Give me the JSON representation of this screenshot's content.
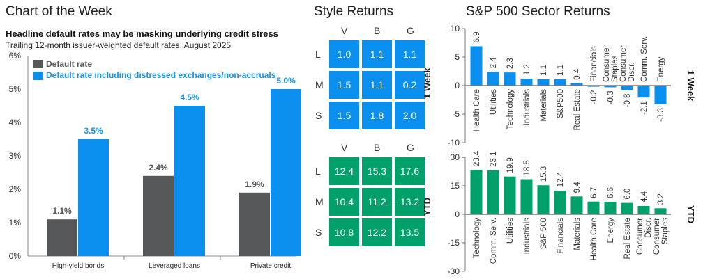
{
  "titles": {
    "chart_of_week": "Chart of the Week",
    "style": "Style Returns",
    "sector": "S&P 500 Sector Returns"
  },
  "colors": {
    "grey": "#555759",
    "blue": "#0A8FEF",
    "green": "#00A06A",
    "labelBlue": "#1A8FEA"
  },
  "style_returns": {
    "columns": [
      "V",
      "B",
      "G"
    ],
    "rows": [
      "L",
      "M",
      "S"
    ],
    "week_label": "1 Week",
    "ytd_label": "YTD",
    "week": [
      [
        "1.0",
        "1.1",
        "1.1"
      ],
      [
        "1.5",
        "1.1",
        "0.2"
      ],
      [
        "1.5",
        "1.8",
        "2.0"
      ]
    ],
    "ytd": [
      [
        "12.4",
        "15.3",
        "17.6"
      ],
      [
        "10.4",
        "11.2",
        "13.2"
      ],
      [
        "10.8",
        "12.2",
        "13.5"
      ]
    ]
  },
  "chart_data": [
    {
      "type": "bar",
      "title": "Headline default rates may be masking underlying credit stress",
      "subtitle": "Trailing 12-month issuer-weighted default rates, August 2025",
      "categories": [
        "High-yield bonds",
        "Leveraged loans",
        "Private credit"
      ],
      "series": [
        {
          "name": "Default rate",
          "values": [
            1.1,
            2.4,
            1.9
          ],
          "labels": [
            "1.1%",
            "2.4%",
            "1.9%"
          ]
        },
        {
          "name": "Default rate including distressed exchanges/non-accruals",
          "values": [
            3.5,
            4.5,
            5.0
          ],
          "labels": [
            "3.5%",
            "4.5%",
            "5.0%"
          ]
        }
      ],
      "yticks": [
        "0%",
        "1%",
        "2%",
        "3%",
        "4%",
        "5%",
        "6%"
      ],
      "ylim": [
        0,
        6
      ],
      "legend": "top-left"
    },
    {
      "type": "bar",
      "title": "1 Week",
      "categories": [
        "Health Care",
        "Utilities",
        "Technology",
        "Industrials",
        "Materials",
        "S&P500",
        "Real Estate",
        "Financials",
        "Consumer Staples",
        "Consumer Discr.",
        "Comm. Serv.",
        "Energy"
      ],
      "values": [
        6.9,
        2.4,
        2.3,
        1.2,
        1.1,
        1.1,
        0.4,
        -0.2,
        -0.3,
        -0.8,
        -2.1,
        -3.3
      ],
      "labels": [
        "6.9",
        "2.4",
        "2.3",
        "1.2",
        "1.1",
        "1.1",
        "0.4",
        "-0.2",
        "-0.3",
        "-0.8",
        "-2.1",
        "-3.3"
      ],
      "yticks": [
        "10",
        "5",
        "0",
        "-5",
        "-10"
      ],
      "ylim": [
        -10,
        10
      ]
    },
    {
      "type": "bar",
      "title": "YTD",
      "categories": [
        "Technology",
        "Comm. Serv.",
        "Utilities",
        "Industrials",
        "S&P 500",
        "Financials",
        "Materials",
        "Health Care",
        "Energy",
        "Real Estate",
        "Consumer Discr.",
        "Consumer Staples"
      ],
      "values": [
        23.4,
        23.1,
        19.9,
        18.5,
        15.3,
        12.4,
        9.4,
        6.7,
        6.6,
        6.0,
        4.4,
        3.2
      ],
      "labels": [
        "23.4",
        "23.1",
        "19.9",
        "18.5",
        "15.3",
        "12.4",
        "9.4",
        "6.7",
        "6.6",
        "6.0",
        "4.4",
        "3.2"
      ],
      "yticks": [
        "30",
        "15",
        "0",
        "-15",
        "-30"
      ],
      "ylim": [
        -30,
        30
      ]
    }
  ]
}
